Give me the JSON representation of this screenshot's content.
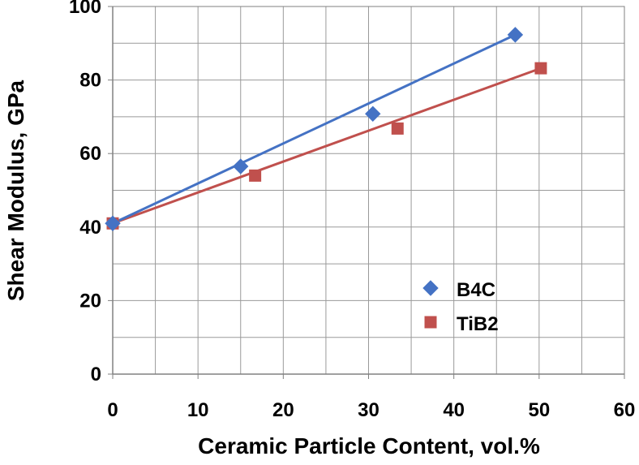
{
  "chart_data": {
    "type": "scatter",
    "title": "",
    "xlabel": "Ceramic Particle Content, vol.%",
    "ylabel": "Shear Modulus, GPa",
    "xlim": [
      0,
      60
    ],
    "ylim": [
      0,
      100
    ],
    "xticks": [
      0,
      10,
      20,
      30,
      40,
      50,
      60
    ],
    "yticks": [
      0,
      20,
      40,
      60,
      80,
      100
    ],
    "x_tick_labels": [
      "0",
      "10",
      "20",
      "30",
      "40",
      "50",
      "60"
    ],
    "y_tick_labels": [
      "0",
      "20",
      "40",
      "60",
      "80",
      "100"
    ],
    "grid": true,
    "legend_position": "lower-right",
    "series": [
      {
        "name": "B4C",
        "marker": "diamond",
        "color": "#4472C4",
        "points": [
          {
            "x": 0,
            "y": 41.0
          },
          {
            "x": 15.0,
            "y": 56.5
          },
          {
            "x": 30.5,
            "y": 70.8
          },
          {
            "x": 47.2,
            "y": 92.3
          }
        ],
        "trendline": {
          "x_start": 0,
          "y_start": 41.0,
          "x_end": 47.2,
          "y_end": 92.3
        }
      },
      {
        "name": "TiB2",
        "marker": "square",
        "color": "#C0504D",
        "points": [
          {
            "x": 0,
            "y": 41.0
          },
          {
            "x": 16.7,
            "y": 54.0
          },
          {
            "x": 33.4,
            "y": 66.8
          },
          {
            "x": 50.2,
            "y": 83.2
          }
        ],
        "trendline": {
          "x_start": 0,
          "y_start": 41.0,
          "x_end": 50.2,
          "y_end": 83.2
        }
      }
    ]
  }
}
